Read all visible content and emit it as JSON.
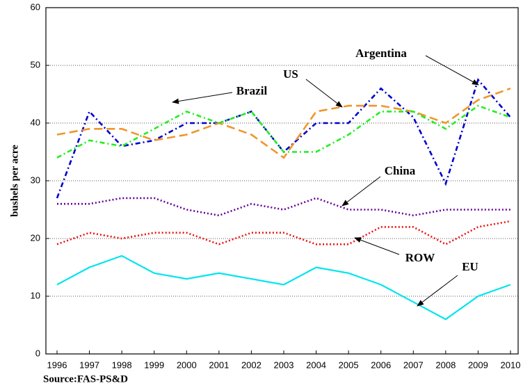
{
  "chart_data": {
    "type": "line",
    "y_label": "bushels per acre",
    "source": "Source:FAS-PS&D",
    "categories": [
      "1996",
      "1997",
      "1998",
      "1999",
      "2000",
      "2001",
      "2002",
      "2003",
      "2004",
      "2005",
      "2006",
      "2007",
      "2008",
      "2009",
      "2010"
    ],
    "ylim": [
      0,
      60
    ],
    "yticks": [
      0,
      10,
      20,
      30,
      40,
      50,
      60
    ],
    "grid": true,
    "series": [
      {
        "name": "Argentina",
        "color": "#0000cc",
        "linestyle": "dashdot",
        "values": [
          27,
          42,
          36,
          37,
          40,
          40,
          42,
          35,
          40,
          40,
          46,
          41,
          29.5,
          47.5,
          41
        ]
      },
      {
        "name": "US",
        "color": "#f0952c",
        "linestyle": "dashed",
        "values": [
          38,
          39,
          39,
          37,
          38,
          40,
          38,
          34,
          42,
          43,
          43,
          42,
          40,
          44,
          46
        ]
      },
      {
        "name": "Brazil",
        "color": "#22ee22",
        "linestyle": "dashdot",
        "values": [
          34,
          37,
          36,
          39,
          42,
          40,
          42,
          35,
          35,
          38,
          42,
          42,
          39,
          43,
          41
        ]
      },
      {
        "name": "China",
        "color": "#660099",
        "linestyle": "dotted",
        "values": [
          26,
          26,
          27,
          27,
          25,
          24,
          26,
          25,
          27,
          25,
          25,
          24,
          25,
          25,
          25
        ]
      },
      {
        "name": "ROW",
        "color": "#ee1111",
        "linestyle": "dotted",
        "values": [
          19,
          21,
          20,
          21,
          21,
          19,
          21,
          21,
          19,
          19,
          22,
          22,
          19,
          22,
          23
        ]
      },
      {
        "name": "EU",
        "color": "#00e5ee",
        "linestyle": "solid",
        "values": [
          12,
          15,
          17,
          14,
          13,
          14,
          13,
          12,
          15,
          14,
          12,
          9,
          6,
          10,
          12
        ]
      }
    ]
  }
}
